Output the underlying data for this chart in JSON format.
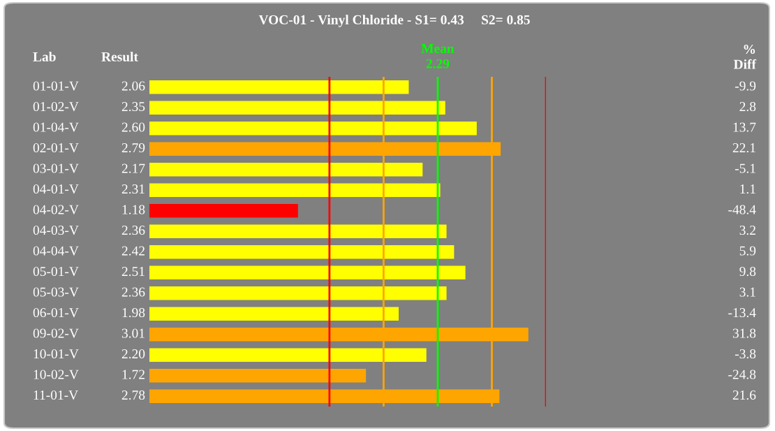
{
  "chart_data": {
    "type": "bar",
    "orientation": "horizontal",
    "title": "VOC-01 - Vinyl Chloride - S1= 0.43     S2= 0.85",
    "categories": [
      "01-01-V",
      "01-02-V",
      "01-04-V",
      "02-01-V",
      "03-01-V",
      "04-01-V",
      "04-02-V",
      "04-03-V",
      "04-04-V",
      "05-01-V",
      "05-03-V",
      "06-01-V",
      "09-02-V",
      "10-01-V",
      "10-02-V",
      "11-01-V"
    ],
    "values": [
      2.06,
      2.35,
      2.6,
      2.79,
      2.17,
      2.31,
      1.18,
      2.36,
      2.42,
      2.51,
      2.36,
      1.98,
      3.01,
      2.2,
      1.72,
      2.78
    ],
    "value_labels": [
      "2.06",
      "2.35",
      "2.60",
      "2.79",
      "2.17",
      "2.31",
      "1.18",
      "2.36",
      "2.42",
      "2.51",
      "2.36",
      "1.98",
      "3.01",
      "2.20",
      "1.72",
      "2.78"
    ],
    "colors": [
      "#ffff00",
      "#ffff00",
      "#ffff00",
      "#ffa500",
      "#ffff00",
      "#ffff00",
      "#ff0000",
      "#ffff00",
      "#ffff00",
      "#ffff00",
      "#ffff00",
      "#ffff00",
      "#ffa500",
      "#ffff00",
      "#ffa500",
      "#ffa500"
    ],
    "ref_lines": [
      {
        "axis": "x",
        "value": 1.43,
        "color": "#ff0000"
      },
      {
        "axis": "x",
        "value": 1.86,
        "color": "#ffa500"
      },
      {
        "axis": "x",
        "value": 2.29,
        "color": "#00ff00",
        "label": "Mean\n2.29"
      },
      {
        "axis": "x",
        "value": 2.72,
        "color": "#ffa500"
      },
      {
        "axis": "x",
        "value": 3.15,
        "color": "#ff0000"
      }
    ],
    "annotations": [
      "Lab",
      "Result",
      "%\nDiff",
      "-9.9",
      "2.8",
      "13.7",
      "22.1",
      "-5.1",
      "1.1",
      "-48.4",
      "3.2",
      "5.9",
      "9.8",
      "3.1",
      "-13.4",
      "31.8",
      "-3.8",
      "-24.8",
      "21.6"
    ]
  }
}
